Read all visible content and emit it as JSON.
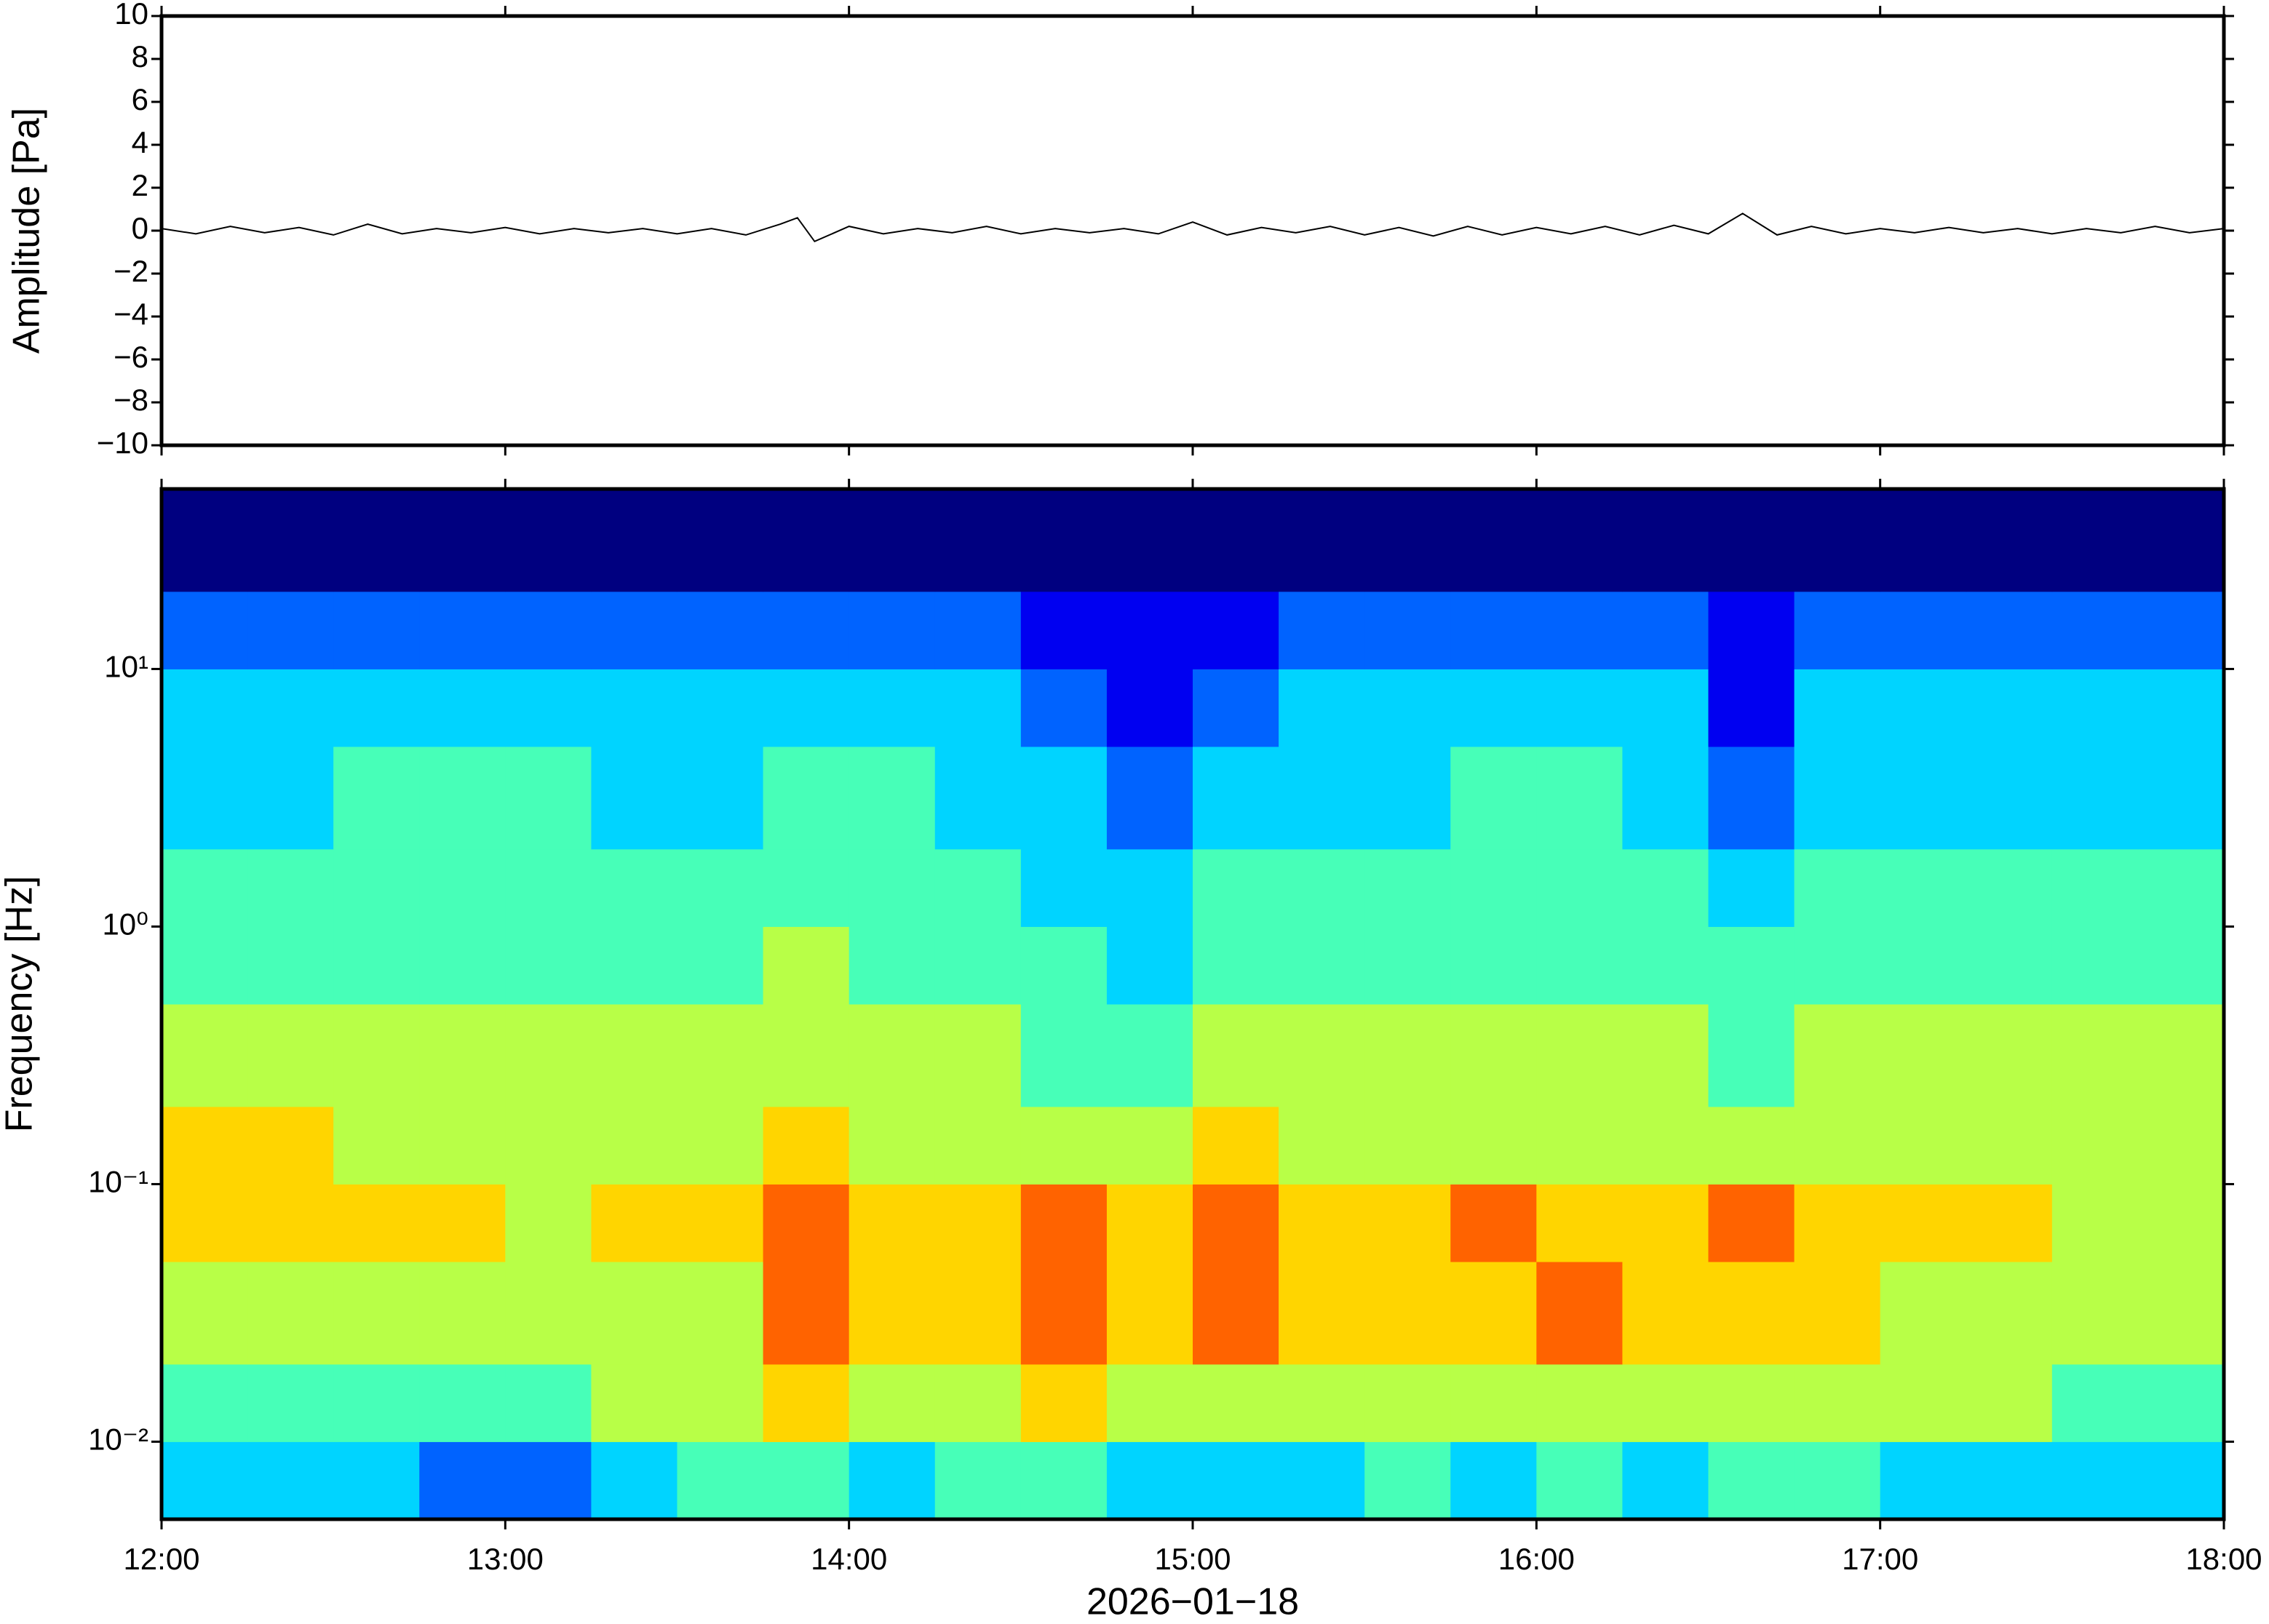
{
  "chart_data": [
    {
      "type": "line",
      "ylabel": "Amplitude [Pa]",
      "color": "#000000",
      "xlim": [
        12,
        18
      ],
      "xticks": [
        12,
        13,
        14,
        15,
        16,
        17,
        18
      ],
      "ylim": [
        -10,
        10
      ],
      "yticks": [
        {
          "value": -10,
          "label": "−10"
        },
        {
          "value": -8,
          "label": "−8"
        },
        {
          "value": -6,
          "label": "−6"
        },
        {
          "value": -4,
          "label": "−4"
        },
        {
          "value": -2,
          "label": "−2"
        },
        0,
        2,
        4,
        6,
        8,
        10
      ],
      "x": [
        12,
        12.1,
        12.2,
        12.3,
        12.4,
        12.5,
        12.6,
        12.7,
        12.8,
        12.9,
        13,
        13.1,
        13.2,
        13.3,
        13.4,
        13.5,
        13.6,
        13.7,
        13.8,
        13.85,
        13.9,
        14,
        14.1,
        14.2,
        14.3,
        14.4,
        14.5,
        14.6,
        14.7,
        14.8,
        14.9,
        15,
        15.1,
        15.2,
        15.3,
        15.4,
        15.5,
        15.6,
        15.7,
        15.8,
        15.9,
        16,
        16.1,
        16.2,
        16.3,
        16.4,
        16.5,
        16.6,
        16.7,
        16.8,
        16.9,
        17,
        17.1,
        17.2,
        17.3,
        17.4,
        17.5,
        17.6,
        17.7,
        17.8,
        17.9,
        18
      ],
      "values": [
        0.1,
        -0.15,
        0.2,
        -0.1,
        0.15,
        -0.2,
        0.3,
        -0.15,
        0.1,
        -0.1,
        0.15,
        -0.15,
        0.1,
        -0.1,
        0.1,
        -0.15,
        0.1,
        -0.2,
        0.3,
        0.6,
        -0.5,
        0.2,
        -0.15,
        0.1,
        -0.1,
        0.2,
        -0.15,
        0.1,
        -0.1,
        0.1,
        -0.15,
        0.4,
        -0.2,
        0.15,
        -0.1,
        0.2,
        -0.2,
        0.15,
        -0.25,
        0.2,
        -0.2,
        0.15,
        -0.15,
        0.2,
        -0.2,
        0.25,
        -0.15,
        0.8,
        -0.2,
        0.2,
        -0.15,
        0.1,
        -0.1,
        0.15,
        -0.1,
        0.1,
        -0.15,
        0.1,
        -0.1,
        0.2,
        -0.1,
        0.1
      ]
    },
    {
      "type": "heatmap",
      "ylabel": "Frequency [Hz]",
      "xlabel": "2026−01−18",
      "xlim": [
        12,
        18
      ],
      "xticks": [
        {
          "value": 12,
          "label": "12:00"
        },
        {
          "value": 13,
          "label": "13:00"
        },
        {
          "value": 14,
          "label": "14:00"
        },
        {
          "value": 15,
          "label": "15:00"
        },
        {
          "value": 16,
          "label": "16:00"
        },
        {
          "value": 17,
          "label": "17:00"
        },
        {
          "value": 18,
          "label": "18:00"
        }
      ],
      "ylim": [
        0.005,
        50
      ],
      "log_y": true,
      "colormap": "jet",
      "zlim": [
        0,
        9
      ],
      "yticks": [
        {
          "value": 0.01,
          "label": "10⁻²"
        },
        {
          "value": 0.1,
          "label": "10⁻¹"
        },
        {
          "value": 1,
          "label": "10⁰"
        },
        {
          "value": 10,
          "label": "10¹"
        }
      ],
      "xbins": [
        12,
        12.25,
        12.5,
        12.75,
        13,
        13.25,
        13.5,
        13.75,
        14,
        14.25,
        14.5,
        14.75,
        15,
        15.25,
        15.5,
        15.75,
        16,
        16.25,
        16.5,
        16.75,
        17,
        17.25,
        17.5,
        17.75,
        18
      ],
      "ybins": [
        0.005,
        0.01,
        0.02,
        0.05,
        0.1,
        0.2,
        0.5,
        1,
        2,
        5,
        10,
        20,
        50
      ],
      "values": [
        [
          3,
          3,
          3,
          2,
          2,
          3,
          4,
          4,
          3,
          4,
          4,
          3,
          3,
          3,
          4,
          3,
          4,
          3,
          4,
          4,
          3,
          3,
          3,
          3
        ],
        [
          4,
          4,
          4,
          4,
          4,
          5,
          5,
          6,
          5,
          5,
          6,
          5,
          5,
          5,
          5,
          5,
          5,
          5,
          5,
          5,
          5,
          5,
          4,
          4
        ],
        [
          5,
          5,
          5,
          5,
          5,
          5,
          5,
          7,
          6,
          6,
          7,
          6,
          7,
          6,
          6,
          6,
          7,
          6,
          6,
          6,
          5,
          5,
          5,
          5
        ],
        [
          6,
          6,
          6,
          6,
          5,
          6,
          6,
          7,
          6,
          6,
          7,
          6,
          7,
          6,
          6,
          7,
          6,
          6,
          7,
          6,
          6,
          6,
          5,
          5
        ],
        [
          6,
          6,
          5,
          5,
          5,
          5,
          5,
          6,
          5,
          5,
          5,
          5,
          6,
          5,
          5,
          5,
          5,
          5,
          5,
          5,
          5,
          5,
          5,
          5
        ],
        [
          5,
          5,
          5,
          5,
          5,
          5,
          5,
          5,
          5,
          5,
          4,
          4,
          5,
          5,
          5,
          5,
          5,
          5,
          4,
          5,
          5,
          5,
          5,
          5
        ],
        [
          4,
          4,
          4,
          4,
          4,
          4,
          4,
          5,
          4,
          4,
          4,
          3,
          4,
          4,
          4,
          4,
          4,
          4,
          4,
          4,
          4,
          4,
          4,
          4
        ],
        [
          4,
          4,
          4,
          4,
          4,
          4,
          4,
          4,
          4,
          4,
          3,
          3,
          4,
          4,
          4,
          4,
          4,
          4,
          3,
          4,
          4,
          4,
          4,
          4
        ],
        [
          3,
          3,
          4,
          4,
          4,
          3,
          3,
          4,
          4,
          3,
          3,
          2,
          3,
          3,
          3,
          4,
          4,
          3,
          2,
          3,
          3,
          3,
          3,
          3
        ],
        [
          3,
          3,
          3,
          3,
          3,
          3,
          3,
          3,
          3,
          3,
          2,
          1,
          2,
          3,
          3,
          3,
          3,
          3,
          1,
          3,
          3,
          3,
          3,
          3
        ],
        [
          2,
          2,
          2,
          2,
          2,
          2,
          2,
          2,
          2,
          2,
          1,
          1,
          1,
          2,
          2,
          2,
          2,
          2,
          1,
          2,
          2,
          2,
          2,
          2
        ],
        [
          0,
          0,
          0,
          0,
          0,
          0,
          0,
          0,
          0,
          0,
          0,
          0,
          0,
          0,
          0,
          0,
          0,
          0,
          0,
          0,
          0,
          0,
          0,
          0
        ]
      ]
    }
  ]
}
